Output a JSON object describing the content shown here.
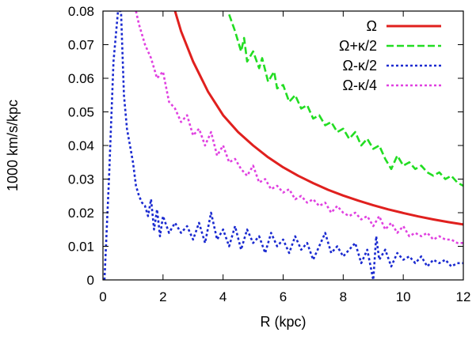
{
  "chart_data": {
    "type": "line",
    "xlabel": "R (kpc)",
    "ylabel": "1000 km/s/kpc",
    "xlim": [
      0,
      12
    ],
    "ylim": [
      0,
      0.08
    ],
    "xticks": [
      0,
      2,
      4,
      6,
      8,
      10,
      12
    ],
    "xtick_labels": [
      "0",
      "2",
      "4",
      "6",
      "8",
      "10",
      "12"
    ],
    "yticks": [
      0,
      0.01,
      0.02,
      0.03,
      0.04,
      0.05,
      0.06,
      0.07,
      0.08
    ],
    "ytick_labels": [
      "0",
      "0.01",
      "0.02",
      "0.03",
      "0.04",
      "0.05",
      "0.06",
      "0.07",
      "0.08"
    ],
    "grid": false,
    "legend_position": "top-right",
    "series": [
      {
        "name": "Ω",
        "color": "#e0201e",
        "style": "solid",
        "x": [
          2.4,
          2.6,
          3.0,
          3.5,
          4.0,
          4.5,
          5.0,
          5.5,
          6.0,
          6.5,
          7.0,
          7.5,
          8.0,
          8.5,
          9.0,
          9.5,
          10.0,
          10.5,
          11.0,
          11.5,
          12.0
        ],
        "y": [
          0.08,
          0.074,
          0.065,
          0.056,
          0.049,
          0.044,
          0.04,
          0.0365,
          0.0335,
          0.031,
          0.0288,
          0.0268,
          0.0251,
          0.0236,
          0.0222,
          0.021,
          0.0199,
          0.0189,
          0.018,
          0.0172,
          0.0165
        ]
      },
      {
        "name": "Ω+κ/2",
        "color": "#22dd22",
        "style": "dashed",
        "x": [
          4.2,
          4.4,
          4.6,
          4.7,
          4.8,
          5.0,
          5.2,
          5.3,
          5.5,
          5.7,
          5.8,
          6.0,
          6.2,
          6.4,
          6.6,
          6.8,
          7.0,
          7.2,
          7.4,
          7.6,
          7.8,
          8.0,
          8.2,
          8.4,
          8.6,
          8.8,
          9.0,
          9.2,
          9.4,
          9.6,
          9.8,
          10.0,
          10.2,
          10.4,
          10.6,
          10.8,
          11.0,
          11.2,
          11.4,
          11.6,
          11.8,
          12.0
        ],
        "y": [
          0.079,
          0.074,
          0.068,
          0.072,
          0.065,
          0.068,
          0.063,
          0.066,
          0.059,
          0.062,
          0.057,
          0.058,
          0.053,
          0.055,
          0.051,
          0.052,
          0.048,
          0.049,
          0.046,
          0.047,
          0.044,
          0.045,
          0.042,
          0.044,
          0.04,
          0.042,
          0.039,
          0.04,
          0.036,
          0.033,
          0.037,
          0.034,
          0.035,
          0.033,
          0.034,
          0.032,
          0.031,
          0.032,
          0.03,
          0.031,
          0.029,
          0.028
        ]
      },
      {
        "name": "Ω-κ/2",
        "color": "#1a2ad0",
        "style": "dotted",
        "x": [
          0.05,
          0.2,
          0.35,
          0.5,
          0.6,
          0.7,
          0.8,
          0.9,
          1.0,
          1.1,
          1.2,
          1.3,
          1.4,
          1.5,
          1.6,
          1.7,
          1.8,
          1.9,
          2.0,
          2.2,
          2.4,
          2.6,
          2.8,
          3.0,
          3.2,
          3.4,
          3.6,
          3.8,
          4.0,
          4.2,
          4.4,
          4.6,
          4.8,
          5.0,
          5.2,
          5.4,
          5.6,
          5.8,
          6.0,
          6.2,
          6.4,
          6.6,
          6.8,
          7.0,
          7.2,
          7.4,
          7.6,
          7.8,
          8.0,
          8.2,
          8.4,
          8.6,
          8.8,
          9.0,
          9.1,
          9.2,
          9.4,
          9.6,
          9.8,
          10.0,
          10.2,
          10.4,
          10.6,
          10.8,
          11.0,
          11.2,
          11.4,
          11.6,
          11.8,
          12.0
        ],
        "y": [
          0.0,
          0.03,
          0.065,
          0.08,
          0.08,
          0.055,
          0.045,
          0.04,
          0.035,
          0.028,
          0.025,
          0.023,
          0.022,
          0.019,
          0.024,
          0.015,
          0.021,
          0.013,
          0.019,
          0.014,
          0.017,
          0.014,
          0.016,
          0.012,
          0.017,
          0.011,
          0.02,
          0.012,
          0.015,
          0.01,
          0.016,
          0.009,
          0.015,
          0.011,
          0.013,
          0.008,
          0.014,
          0.01,
          0.012,
          0.008,
          0.013,
          0.009,
          0.011,
          0.006,
          0.01,
          0.014,
          0.008,
          0.01,
          0.007,
          0.009,
          0.011,
          0.005,
          0.009,
          0.0,
          0.013,
          0.006,
          0.009,
          0.004,
          0.008,
          0.006,
          0.007,
          0.005,
          0.007,
          0.004,
          0.006,
          0.005,
          0.006,
          0.004,
          0.005,
          0.005
        ]
      },
      {
        "name": "Ω-κ/4",
        "color": "#e040e0",
        "style": "dotted",
        "x": [
          1.1,
          1.2,
          1.4,
          1.6,
          1.8,
          2.0,
          2.2,
          2.4,
          2.6,
          2.8,
          3.0,
          3.2,
          3.4,
          3.6,
          3.8,
          4.0,
          4.2,
          4.4,
          4.6,
          4.8,
          5.0,
          5.2,
          5.4,
          5.6,
          5.8,
          6.0,
          6.2,
          6.4,
          6.6,
          6.8,
          7.0,
          7.2,
          7.4,
          7.6,
          7.8,
          8.0,
          8.2,
          8.4,
          8.6,
          8.8,
          9.0,
          9.2,
          9.4,
          9.6,
          9.8,
          10.0,
          10.2,
          10.4,
          10.6,
          10.8,
          11.0,
          11.2,
          11.4,
          11.6,
          11.8,
          12.0
        ],
        "y": [
          0.08,
          0.076,
          0.07,
          0.066,
          0.06,
          0.062,
          0.053,
          0.051,
          0.047,
          0.049,
          0.043,
          0.045,
          0.04,
          0.044,
          0.037,
          0.04,
          0.035,
          0.036,
          0.033,
          0.031,
          0.034,
          0.029,
          0.03,
          0.027,
          0.028,
          0.026,
          0.027,
          0.024,
          0.025,
          0.023,
          0.024,
          0.022,
          0.023,
          0.02,
          0.022,
          0.02,
          0.019,
          0.02,
          0.018,
          0.019,
          0.016,
          0.019,
          0.015,
          0.017,
          0.014,
          0.016,
          0.013,
          0.014,
          0.013,
          0.014,
          0.012,
          0.013,
          0.012,
          0.012,
          0.011,
          0.011
        ]
      }
    ]
  }
}
